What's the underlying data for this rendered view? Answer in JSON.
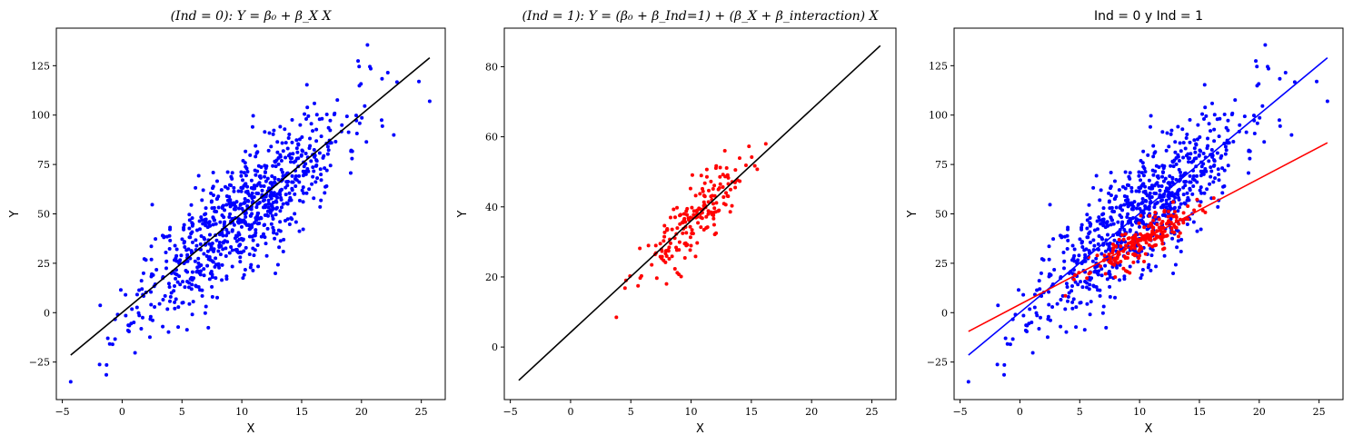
{
  "chart_data": [
    {
      "type": "scatter",
      "title_prefix": "(Ind = 0):",
      "title_formula": "Y = β₀ + β_X X",
      "xlabel": "X",
      "ylabel": "Y",
      "xlim": [
        -5.5,
        27
      ],
      "ylim": [
        -44,
        144
      ],
      "xticks": [
        -5,
        0,
        5,
        10,
        15,
        20,
        25
      ],
      "yticks": [
        -25,
        0,
        25,
        50,
        75,
        100,
        125
      ],
      "series": [
        {
          "id": "ind0",
          "role": "points",
          "color": "#0000ff",
          "n": 820,
          "x_mean": 10,
          "x_sd": 4.2,
          "intercept": 0,
          "slope": 5,
          "noise_sd": 14.5,
          "seed": 11,
          "extremes": [
            [
              -4.3,
              -35
            ],
            [
              25.7,
              107
            ],
            [
              20.5,
              135.5
            ],
            [
              20.7,
              124.5
            ],
            [
              22.2,
              121.5
            ],
            [
              24.8,
              117
            ],
            [
              -1.3,
              -26.5
            ],
            [
              -1.2,
              -13
            ],
            [
              -0.8,
              -16
            ],
            [
              0.3,
              -1.5
            ]
          ]
        },
        {
          "id": "ind0-fit",
          "role": "line",
          "color": "#000000",
          "x": [
            -4.3,
            25.7
          ],
          "y": [
            -21.5,
            129
          ]
        }
      ]
    },
    {
      "type": "scatter",
      "title_prefix": "(Ind = 1):",
      "title_formula": "Y = (β₀ + β_Ind=1) + (β_X + β_interaction) X",
      "xlabel": "X",
      "ylabel": "Y",
      "xlim": [
        -5.5,
        27
      ],
      "ylim": [
        -15,
        91
      ],
      "xticks": [
        -5,
        0,
        5,
        10,
        15,
        20,
        25
      ],
      "yticks": [
        0,
        20,
        40,
        60,
        80
      ],
      "series": [
        {
          "id": "ind1",
          "role": "points",
          "color": "#ff0000",
          "n": 190,
          "x_mean": 10.2,
          "x_sd": 2.1,
          "intercept": 3.5,
          "slope": 3.2,
          "noise_sd": 4.3,
          "seed": 23,
          "extremes": [
            [
              3.8,
              8.5
            ],
            [
              4.6,
              19
            ],
            [
              16.2,
              58
            ],
            [
              12.8,
              56
            ]
          ]
        },
        {
          "id": "ind1-fit",
          "role": "line",
          "color": "#000000",
          "x": [
            -4.3,
            25.7
          ],
          "y": [
            -9.5,
            86
          ]
        }
      ]
    },
    {
      "type": "scatter",
      "title": "Ind = 0 y Ind = 1",
      "xlabel": "X",
      "ylabel": "Y",
      "xlim": [
        -5.5,
        27
      ],
      "ylim": [
        -44,
        144
      ],
      "xticks": [
        -5,
        0,
        5,
        10,
        15,
        20,
        25
      ],
      "yticks": [
        -25,
        0,
        25,
        50,
        75,
        100,
        125
      ],
      "series": [
        {
          "id": "ind0",
          "role": "points-ref",
          "color": "#0000ff"
        },
        {
          "id": "ind1",
          "role": "points-ref",
          "color": "#ff0000"
        },
        {
          "id": "ind0-fit",
          "role": "line",
          "color": "#0000ff",
          "x": [
            -4.3,
            25.7
          ],
          "y": [
            -21.5,
            129
          ]
        },
        {
          "id": "ind1-fit",
          "role": "line",
          "color": "#ff0000",
          "x": [
            -4.3,
            25.7
          ],
          "y": [
            -9.5,
            86
          ]
        }
      ]
    }
  ]
}
